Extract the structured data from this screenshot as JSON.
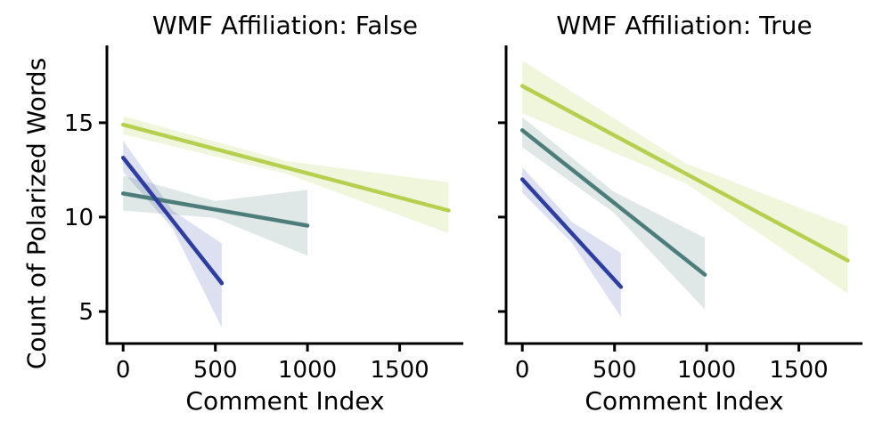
{
  "figure": {
    "background": "#ffffff",
    "text_color": "#000000",
    "spine_color": "#000000",
    "ylabel": "Count of Polarized Words"
  },
  "chart_data": [
    {
      "type": "line",
      "panel": "left",
      "title": "WMF Affiliation: False",
      "xlabel": "Comment Index",
      "ylabel": "Count of Polarized Words",
      "xlim": [
        -88,
        1845
      ],
      "ylim": [
        3.3,
        19.1
      ],
      "xticks": [
        0,
        500,
        1000,
        1500
      ],
      "yticks": [
        5,
        10,
        15
      ],
      "show_ytick_labels": true,
      "grid": false,
      "legend": "none",
      "series": [
        {
          "name": "yellow-green",
          "color": "#b5d04f",
          "ci_fill": "rgba(180,208,79,0.20)",
          "x": [
            0,
            1765
          ],
          "y": [
            14.9,
            10.35
          ],
          "ci_top": [
            [
              0,
              15.35
            ],
            [
              885,
              12.97
            ],
            [
              1765,
              11.85
            ]
          ],
          "ci_bottom": [
            [
              0,
              14.4
            ],
            [
              885,
              12.3
            ],
            [
              1765,
              9.15
            ]
          ]
        },
        {
          "name": "teal",
          "color": "#4d7d7b",
          "ci_fill": "rgba(77,125,123,0.18)",
          "x": [
            0,
            1000
          ],
          "y": [
            11.25,
            9.55
          ],
          "ci_top": [
            [
              0,
              12.2
            ],
            [
              500,
              10.85
            ],
            [
              1000,
              11.45
            ]
          ],
          "ci_bottom": [
            [
              0,
              10.35
            ],
            [
              500,
              9.95
            ],
            [
              1000,
              7.95
            ]
          ]
        },
        {
          "name": "dark-blue",
          "color": "#2e3da0",
          "ci_fill": "rgba(46,61,160,0.16)",
          "x": [
            0,
            535
          ],
          "y": [
            13.15,
            6.5
          ],
          "ci_top": [
            [
              0,
              14.05
            ],
            [
              268,
              10.35
            ],
            [
              535,
              8.6
            ]
          ],
          "ci_bottom": [
            [
              0,
              12.4
            ],
            [
              268,
              9.4
            ],
            [
              535,
              4.15
            ]
          ]
        }
      ]
    },
    {
      "type": "line",
      "panel": "right",
      "title": "WMF Affiliation: True",
      "xlabel": "Comment Index",
      "ylabel": "",
      "xlim": [
        -88,
        1845
      ],
      "ylim": [
        3.3,
        19.1
      ],
      "xticks": [
        0,
        500,
        1000,
        1500
      ],
      "yticks": [
        5,
        10,
        15
      ],
      "show_ytick_labels": false,
      "grid": false,
      "legend": "none",
      "series": [
        {
          "name": "yellow-green",
          "color": "#b5d04f",
          "ci_fill": "rgba(180,208,79,0.20)",
          "x": [
            0,
            1765
          ],
          "y": [
            16.95,
            7.7
          ],
          "ci_top": [
            [
              0,
              18.3
            ],
            [
              885,
              12.85
            ],
            [
              1765,
              9.5
            ]
          ],
          "ci_bottom": [
            [
              0,
              15.5
            ],
            [
              885,
              11.8
            ],
            [
              1765,
              5.95
            ]
          ]
        },
        {
          "name": "teal",
          "color": "#4d7d7b",
          "ci_fill": "rgba(77,125,123,0.18)",
          "x": [
            0,
            990
          ],
          "y": [
            14.6,
            6.95
          ],
          "ci_top": [
            [
              0,
              15.3
            ],
            [
              495,
              11.35
            ],
            [
              990,
              8.9
            ]
          ],
          "ci_bottom": [
            [
              0,
              13.7
            ],
            [
              495,
              10.25
            ],
            [
              990,
              5.1
            ]
          ]
        },
        {
          "name": "dark-blue",
          "color": "#2e3da0",
          "ci_fill": "rgba(46,61,160,0.16)",
          "x": [
            0,
            535
          ],
          "y": [
            12.0,
            6.3
          ],
          "ci_top": [
            [
              0,
              12.65
            ],
            [
              268,
              9.75
            ],
            [
              535,
              8.1
            ]
          ],
          "ci_bottom": [
            [
              0,
              11.3
            ],
            [
              268,
              8.65
            ],
            [
              535,
              4.7
            ]
          ]
        }
      ]
    }
  ]
}
